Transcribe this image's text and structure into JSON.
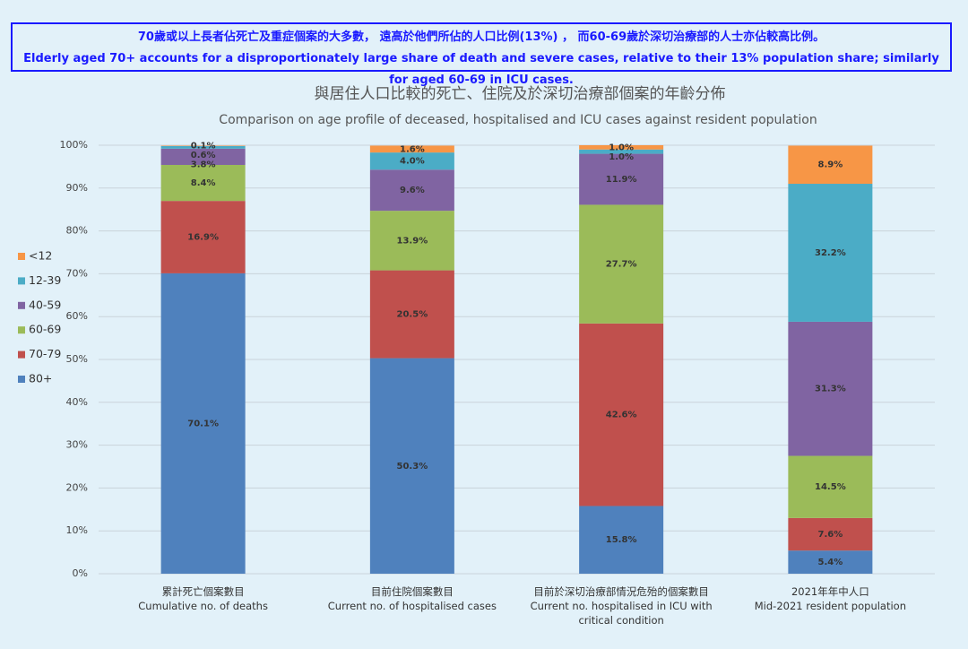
{
  "header": {
    "line_zh": "70歲或以上長者佔死亡及重症個案的大多數， 遠高於他們所佔的人口比例(13%) ， 而60-69歲於深切治療部的人士亦佔較高比例。",
    "line_en": "Elderly aged 70+ accounts for a disproportionately large share of death and severe cases, relative to their 13% population share; similarly for aged 60-69 in ICU cases."
  },
  "chart_data": {
    "type": "stacked_bar",
    "title": "與居住人口比較的死亡、住院及於深切治療部個案的年齡分佈",
    "subtitle": "Comparison on age profile of deceased, hospitalised and ICU cases against resident population",
    "categories": [
      "累計死亡個案數目",
      "目前住院個案數目",
      "目前於深切治療部情況危殆的個案數目",
      "2021年年中人口"
    ],
    "categories_en": [
      "Cumulative no. of deaths",
      "Current no. of hospitalised cases",
      "Current no. hospitalised in ICU with critical condition",
      "Mid-2021 resident population"
    ],
    "series": [
      {
        "name": "80+",
        "color": "#4f81bd",
        "values": [
          70.1,
          50.3,
          15.8,
          5.4
        ],
        "value_labels": [
          "70.1%",
          "50.3%",
          "15.8%",
          "5.4%"
        ]
      },
      {
        "name": "70-79",
        "color": "#c0504d",
        "values": [
          16.9,
          20.5,
          42.6,
          7.6
        ],
        "value_labels": [
          "16.9%",
          "20.5%",
          "42.6%",
          "7.6%"
        ]
      },
      {
        "name": "60-69",
        "color": "#9bbb59",
        "values": [
          8.4,
          13.9,
          27.7,
          14.5
        ],
        "value_labels": [
          "8.4%",
          "13.9%",
          "27.7%",
          "14.5%"
        ]
      },
      {
        "name": "40-59",
        "color": "#8064a2",
        "values": [
          3.8,
          9.6,
          11.9,
          31.3
        ],
        "value_labels": [
          "3.8%",
          "9.6%",
          "11.9%",
          "31.3%"
        ]
      },
      {
        "name": "12-39",
        "color": "#4bacc6",
        "values": [
          0.6,
          4.0,
          1.0,
          32.2
        ],
        "value_labels": [
          "0.6%",
          "4.0%",
          "1.0%",
          "32.2%"
        ]
      },
      {
        "name": "<12",
        "color": "#f79646",
        "values": [
          0.1,
          1.6,
          1.0,
          8.9
        ],
        "value_labels": [
          "0.1%",
          "1.6%",
          "1.0%",
          "8.9%"
        ]
      }
    ],
    "ylim": [
      0,
      100
    ],
    "yticks": [
      {
        "value": 0,
        "label": "0%"
      },
      {
        "value": 10,
        "label": "10%"
      },
      {
        "value": 20,
        "label": "20%"
      },
      {
        "value": 30,
        "label": "30%"
      },
      {
        "value": 40,
        "label": "40%"
      },
      {
        "value": 50,
        "label": "50%"
      },
      {
        "value": 60,
        "label": "60%"
      },
      {
        "value": 70,
        "label": "70%"
      },
      {
        "value": 80,
        "label": "80%"
      },
      {
        "value": 90,
        "label": "90%"
      },
      {
        "value": 100,
        "label": "100%"
      }
    ],
    "grid": true,
    "legend": "left"
  }
}
